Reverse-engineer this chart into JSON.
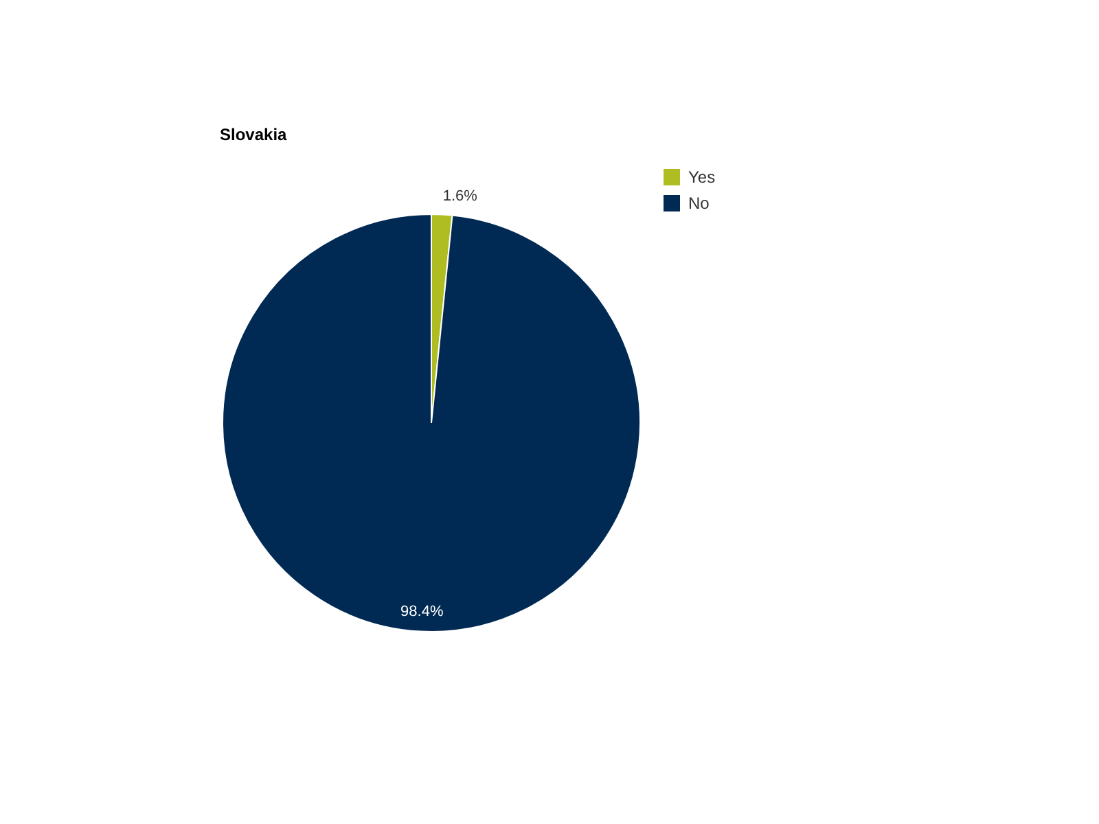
{
  "chart_data": {
    "type": "pie",
    "title": "Slovakia",
    "categories": [
      "Yes",
      "No"
    ],
    "values": [
      1.6,
      98.4
    ],
    "colors": [
      "#afbd22",
      "#002a54"
    ],
    "value_labels": [
      "1.6%",
      "98.4%"
    ],
    "legend": "top right"
  }
}
